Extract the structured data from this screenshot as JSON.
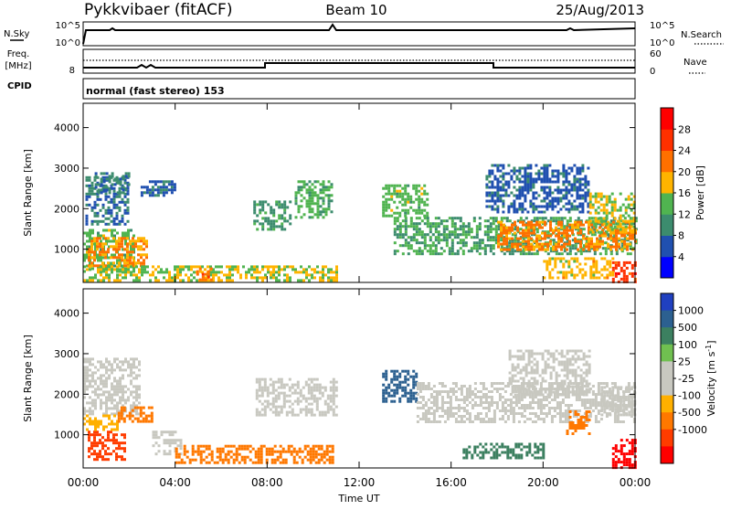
{
  "header": {
    "station": "Pykkvibaer (fitACF)",
    "beam": "Beam 10",
    "date": "25/Aug/2013"
  },
  "summary_panels": {
    "nsky_label": "N.Sky",
    "nsky_ticks": [
      "10^5",
      "10^0"
    ],
    "nsearch_label": "N.Search",
    "nsearch_ticks": [
      "10^5",
      "10^0"
    ],
    "freq_label": "Freq.",
    "freq_unit": "[MHz]",
    "freq_ticks": [
      "8"
    ],
    "nave_label": "Nave",
    "nave_ticks": [
      "60",
      "0"
    ],
    "cpid_label": "CPID",
    "cpid_value": "normal (fast stereo) 153"
  },
  "colors": {
    "power_scale": [
      "#0000ff",
      "#2050b0",
      "#3c8c6e",
      "#50b450",
      "#ffb400",
      "#ff7000",
      "#ff3000",
      "#ff0000"
    ],
    "velocity_scale": [
      "#2040c0",
      "#2c6090",
      "#3c8060",
      "#70c050",
      "#c8c8c0",
      "#c8c8c0",
      "#ffb000",
      "#ff7800",
      "#ff3c00",
      "#ff0000"
    ],
    "ground_scatter": "#c8c8c0"
  },
  "chart_data": [
    {
      "type": "heatmap",
      "name": "power",
      "ylabel": "Slant Range [km]",
      "y_ticks": [
        1000,
        2000,
        3000,
        4000
      ],
      "ylim": [
        180,
        4600
      ],
      "colorbar_label": "Power [dB]",
      "colorbar_ticks": [
        4,
        8,
        12,
        16,
        20,
        24,
        28
      ],
      "colorbar_range": [
        0,
        32
      ],
      "regions": [
        {
          "x": [
            0.0,
            2.2
          ],
          "y": [
            450,
            1500
          ],
          "value": 14
        },
        {
          "x": [
            0.2,
            2.8
          ],
          "y": [
            600,
            1300
          ],
          "value": 20
        },
        {
          "x": [
            0.1,
            2.0
          ],
          "y": [
            1600,
            2800
          ],
          "value": 8
        },
        {
          "x": [
            0.5,
            2.0
          ],
          "y": [
            2400,
            2900
          ],
          "value": 9
        },
        {
          "x": [
            2.5,
            4.0
          ],
          "y": [
            2300,
            2700
          ],
          "value": 7
        },
        {
          "x": [
            0.0,
            11.0
          ],
          "y": [
            200,
            600
          ],
          "value": 16
        },
        {
          "x": [
            4.8,
            5.6
          ],
          "y": [
            250,
            550
          ],
          "value": 22
        },
        {
          "x": [
            7.4,
            9.0
          ],
          "y": [
            1500,
            2200
          ],
          "value": 11
        },
        {
          "x": [
            9.2,
            10.8
          ],
          "y": [
            1800,
            2700
          ],
          "value": 13
        },
        {
          "x": [
            13.0,
            15.0
          ],
          "y": [
            1800,
            2600
          ],
          "value": 14
        },
        {
          "x": [
            13.5,
            24.0
          ],
          "y": [
            900,
            1800
          ],
          "value": 12
        },
        {
          "x": [
            18.0,
            24.0
          ],
          "y": [
            1000,
            1700
          ],
          "value": 21
        },
        {
          "x": [
            17.5,
            22.0
          ],
          "y": [
            1900,
            3100
          ],
          "value": 7
        },
        {
          "x": [
            22.0,
            24.0
          ],
          "y": [
            1400,
            2400
          ],
          "value": 16
        },
        {
          "x": [
            23.0,
            24.0
          ],
          "y": [
            220,
            700
          ],
          "value": 26
        },
        {
          "x": [
            20.0,
            23.0
          ],
          "y": [
            300,
            800
          ],
          "value": 18
        }
      ]
    },
    {
      "type": "heatmap",
      "name": "velocity",
      "ylabel": "Slant Range [km]",
      "y_ticks": [
        1000,
        2000,
        3000,
        4000
      ],
      "ylim": [
        180,
        4600
      ],
      "colorbar_label": "Velocity [m s^-1]",
      "colorbar_ticks": [
        "1000",
        "500",
        "100",
        "25",
        "-25",
        "-100",
        "-500",
        "-1000"
      ],
      "xlabel": "Time UT",
      "x_ticks": [
        "00:00",
        "04:00",
        "08:00",
        "12:00",
        "16:00",
        "20:00",
        "00:00"
      ],
      "xlim": [
        0,
        24
      ],
      "regions": [
        {
          "x": [
            0.0,
            2.5
          ],
          "y": [
            1500,
            2900
          ],
          "value": 0
        },
        {
          "x": [
            0.2,
            1.8
          ],
          "y": [
            400,
            1100
          ],
          "value": -700
        },
        {
          "x": [
            0.0,
            1.5
          ],
          "y": [
            1100,
            1500
          ],
          "value": -80
        },
        {
          "x": [
            1.5,
            3.0
          ],
          "y": [
            1300,
            1700
          ],
          "value": -150
        },
        {
          "x": [
            3.0,
            4.3
          ],
          "y": [
            500,
            1100
          ],
          "value": 0
        },
        {
          "x": [
            4.0,
            10.8
          ],
          "y": [
            300,
            750
          ],
          "value": -150
        },
        {
          "x": [
            7.5,
            11.0
          ],
          "y": [
            1500,
            2400
          ],
          "value": 0
        },
        {
          "x": [
            13.0,
            14.5
          ],
          "y": [
            1800,
            2600
          ],
          "value": 300
        },
        {
          "x": [
            14.5,
            24.0
          ],
          "y": [
            1300,
            2300
          ],
          "value": 0
        },
        {
          "x": [
            16.5,
            20.0
          ],
          "y": [
            400,
            800
          ],
          "value": 150
        },
        {
          "x": [
            18.5,
            22.0
          ],
          "y": [
            2000,
            3100
          ],
          "value": 0
        },
        {
          "x": [
            21.0,
            22.0
          ],
          "y": [
            1000,
            1600
          ],
          "value": -400
        },
        {
          "x": [
            23.0,
            24.0
          ],
          "y": [
            200,
            900
          ],
          "value": -800
        },
        {
          "x": [
            22.5,
            24.0
          ],
          "y": [
            1500,
            2200
          ],
          "value": 0
        }
      ]
    }
  ]
}
